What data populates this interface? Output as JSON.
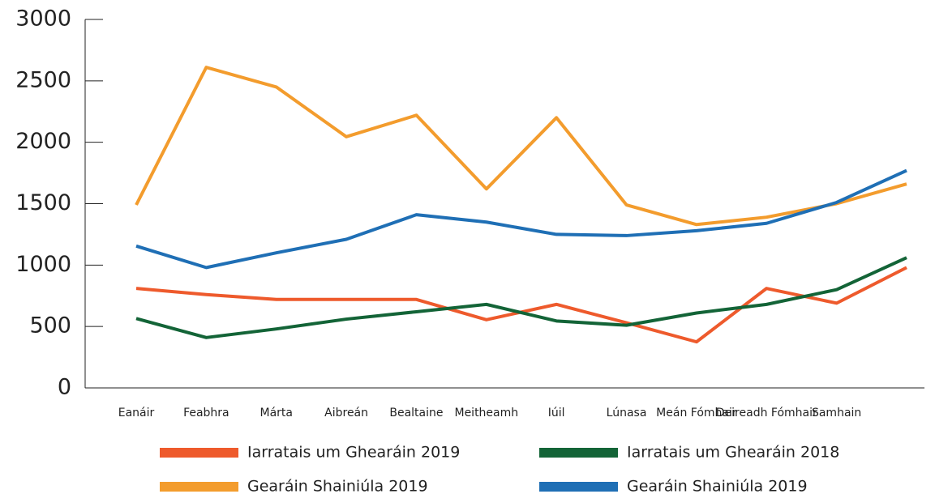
{
  "chart_data": {
    "type": "line",
    "categories": [
      "Eanáir",
      "Feabhra",
      "Márta",
      "Aibreán",
      "Bealtaine",
      "Meitheamh",
      "Iúil",
      "Lúnasa",
      "Meán Fómhair",
      "Deireadh Fómhair",
      "Samhain",
      null
    ],
    "series": [
      {
        "name": "Iarratais um Ghearáin 2019",
        "color": "#ee5a2c",
        "values": [
          810,
          760,
          720,
          720,
          720,
          555,
          680,
          530,
          375,
          810,
          690,
          980
        ]
      },
      {
        "name": "Iarratais um Ghearáin 2018",
        "color": "#136437",
        "values": [
          565,
          410,
          480,
          560,
          620,
          680,
          545,
          510,
          610,
          680,
          800,
          1060
        ]
      },
      {
        "name": "Gearáin Shainiúla 2019",
        "color": "#f39c2d",
        "values": [
          1490,
          2610,
          2450,
          2045,
          2220,
          1620,
          2200,
          1490,
          1330,
          1390,
          1500,
          1660
        ]
      },
      {
        "name": "Gearáin Shainiúla 2019",
        "color": "#1f6fb5",
        "values": [
          1155,
          980,
          1100,
          1210,
          1410,
          1350,
          1250,
          1240,
          1280,
          1340,
          1510,
          1770
        ]
      }
    ],
    "ylim": [
      0,
      3000
    ],
    "yticks": [
      0,
      500,
      1000,
      1500,
      2000,
      2500,
      3000
    ]
  }
}
